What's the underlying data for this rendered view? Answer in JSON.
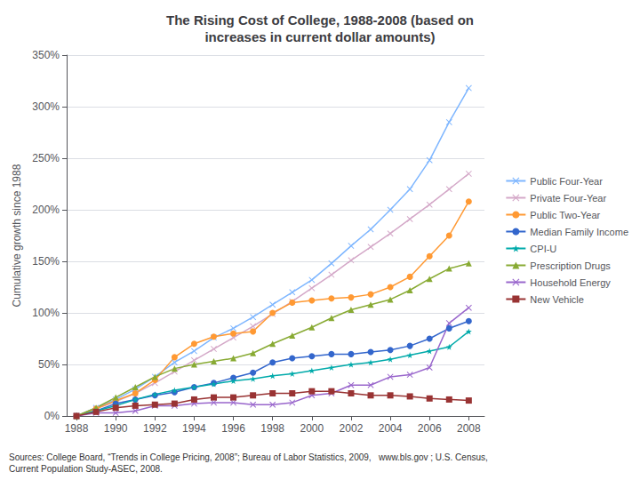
{
  "chart_data": {
    "type": "line",
    "title": "The Rising Cost of College, 1988-2008 (based on\nincreases in current dollar amounts)",
    "ylabel": "Cumulative growth since 1988",
    "annotations": [
      "Sources: College Board, “Trends in College Pricing, 2008”; Bureau of Labor Statistics, 2009,   www.bls.gov ; U.S. Census,\nCurrent Population Study-ASEC, 2008."
    ],
    "x": [
      1988,
      1989,
      1990,
      1991,
      1992,
      1993,
      1994,
      1995,
      1996,
      1997,
      1998,
      1999,
      2000,
      2001,
      2002,
      2003,
      2004,
      2005,
      2006,
      2007,
      2008
    ],
    "series": [
      {
        "name": "Public Four-Year",
        "color": "#7EB6FF",
        "marker": "x",
        "values": [
          0,
          8,
          16,
          26,
          38,
          52,
          63,
          76,
          85,
          96,
          108,
          120,
          132,
          148,
          165,
          181,
          200,
          220,
          248,
          285,
          318
        ]
      },
      {
        "name": "Private Four-Year",
        "color": "#D4A8C8",
        "marker": "x",
        "values": [
          0,
          7,
          14,
          22,
          32,
          43,
          54,
          65,
          76,
          87,
          99,
          111,
          124,
          137,
          151,
          164,
          177,
          191,
          205,
          220,
          235
        ]
      },
      {
        "name": "Public Two-Year",
        "color": "#FF9933",
        "marker": "circle",
        "values": [
          0,
          7,
          15,
          22,
          35,
          57,
          70,
          77,
          80,
          82,
          100,
          110,
          112,
          114,
          115,
          118,
          125,
          135,
          155,
          175,
          208
        ]
      },
      {
        "name": "Median Family Income",
        "color": "#3366CC",
        "marker": "circle",
        "values": [
          0,
          5,
          12,
          16,
          20,
          23,
          28,
          32,
          37,
          42,
          52,
          56,
          58,
          60,
          60,
          62,
          64,
          68,
          75,
          85,
          92
        ]
      },
      {
        "name": "CPI-U",
        "color": "#00AAAA",
        "marker": "star",
        "values": [
          0,
          5,
          10,
          16,
          21,
          25,
          28,
          31,
          34,
          36,
          39,
          41,
          44,
          47,
          50,
          52,
          55,
          59,
          63,
          67,
          82
        ]
      },
      {
        "name": "Prescription Drugs",
        "color": "#88AA33",
        "marker": "triangle",
        "values": [
          0,
          8,
          18,
          28,
          38,
          46,
          50,
          53,
          56,
          61,
          70,
          78,
          86,
          95,
          103,
          108,
          113,
          122,
          133,
          143,
          148
        ]
      },
      {
        "name": "Household Energy",
        "color": "#9966CC",
        "marker": "x",
        "values": [
          0,
          3,
          3,
          5,
          10,
          10,
          12,
          13,
          13,
          11,
          11,
          13,
          20,
          22,
          30,
          30,
          38,
          40,
          47,
          90,
          105
        ]
      },
      {
        "name": "New Vehicle",
        "color": "#993333",
        "marker": "square",
        "values": [
          0,
          4,
          8,
          10,
          11,
          12,
          16,
          18,
          18,
          20,
          22,
          22,
          24,
          24,
          22,
          20,
          20,
          19,
          17,
          16,
          15
        ]
      }
    ],
    "xlim": [
      1987.5,
      2008.8
    ],
    "xticks": [
      1988,
      1990,
      1992,
      1994,
      1996,
      1998,
      2000,
      2002,
      2004,
      2006,
      2008
    ],
    "ylim": [
      0,
      350
    ],
    "yticks": [
      {
        "value": 0,
        "label": "0%"
      },
      {
        "value": 50,
        "label": "50%"
      },
      {
        "value": 100,
        "label": "100%"
      },
      {
        "value": 150,
        "label": "150%"
      },
      {
        "value": 200,
        "label": "200%"
      },
      {
        "value": 250,
        "label": "250%"
      },
      {
        "value": 300,
        "label": "300%"
      },
      {
        "value": 350,
        "label": "350%"
      }
    ],
    "grid": true,
    "legend": "right"
  }
}
